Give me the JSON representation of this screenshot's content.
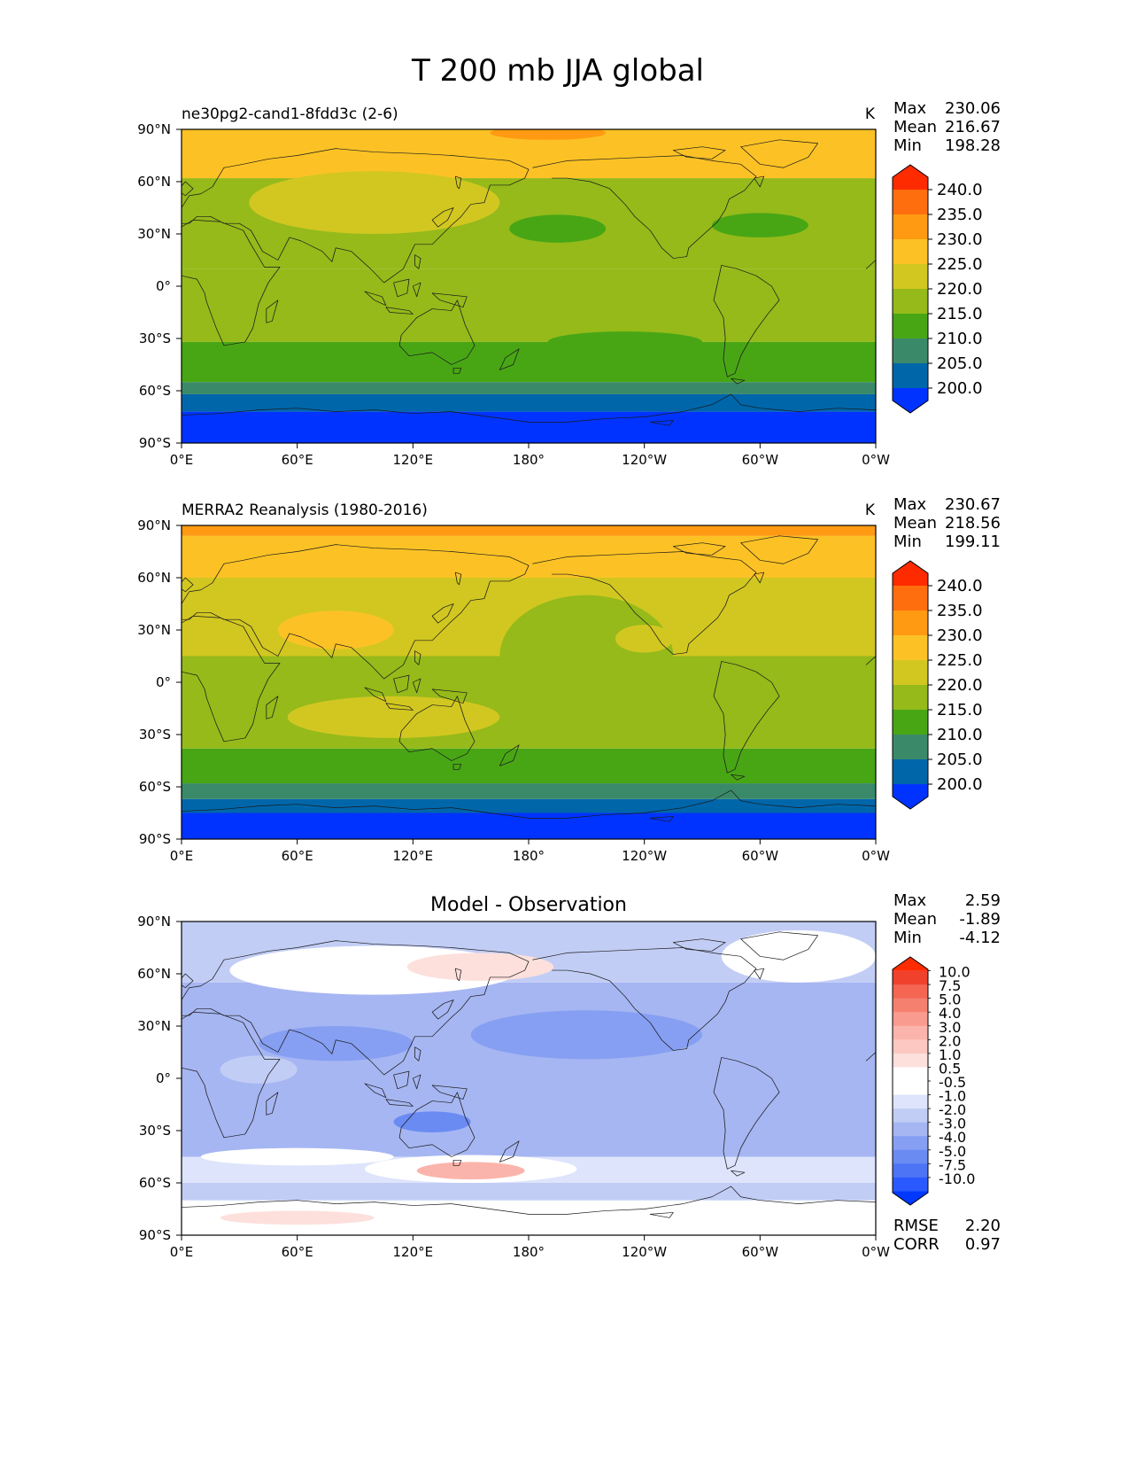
{
  "title": "T 200 mb JJA global",
  "xtick_labels": [
    "0°E",
    "60°E",
    "120°E",
    "180°",
    "120°W",
    "60°W",
    "0°W"
  ],
  "ytick_labels": [
    "90°N",
    "60°N",
    "30°N",
    "0°",
    "30°S",
    "60°S",
    "90°S"
  ],
  "colors": {
    "abs_levels": [
      "#0033ff",
      "#0066aa",
      "#3a8a6a",
      "#48a615",
      "#95ba1a",
      "#d2c721",
      "#fcc225",
      "#ff9a12",
      "#ff6e0e",
      "#ff2b00"
    ],
    "diff_levels": [
      "#0038ff",
      "#2a5aff",
      "#4d74f5",
      "#6a8bf2",
      "#869ff2",
      "#a6b6f2",
      "#c2cdf5",
      "#dde4fb",
      "#ffffff",
      "#ffffff",
      "#fde0dc",
      "#fcc8c1",
      "#fbb4ab",
      "#f99b8f",
      "#f68070",
      "#f46552",
      "#f0412c",
      "#ff2b00"
    ],
    "land_outline": "#1a1a1a"
  },
  "chart_data": [
    {
      "type": "heatmap",
      "panel": "test",
      "title": "ne30pg2-cand1-8fdd3c (2-6)",
      "units": "K",
      "stats": {
        "max_label": "Max",
        "max": "230.06",
        "mean_label": "Mean",
        "mean": "216.67",
        "min_label": "Min",
        "min": "198.28"
      },
      "colorbar_levels": [
        "240.0",
        "235.0",
        "230.0",
        "225.0",
        "220.0",
        "215.0",
        "210.0",
        "205.0",
        "200.0"
      ],
      "xlim": [
        0,
        360
      ],
      "ylim": [
        -90,
        90
      ],
      "zones": [
        {
          "lat": [
            -90,
            -72
          ],
          "level": 0
        },
        {
          "lat": [
            -72,
            -62
          ],
          "level": 1
        },
        {
          "lat": [
            -62,
            -55
          ],
          "level": 2
        },
        {
          "lat": [
            -55,
            -32
          ],
          "level": 3
        },
        {
          "lat": [
            -32,
            10
          ],
          "level": 4
        },
        {
          "lat": [
            10,
            62
          ],
          "level": 4
        },
        {
          "lat": [
            62,
            90
          ],
          "level": 6
        }
      ],
      "blobs": [
        {
          "lon": 100,
          "lat": 48,
          "rlon": 65,
          "rlat": 18,
          "level": 5
        },
        {
          "lon": 195,
          "lat": 33,
          "rlon": 25,
          "rlat": 8,
          "level": 3
        },
        {
          "lon": 300,
          "lat": 35,
          "rlon": 25,
          "rlat": 7,
          "level": 3
        },
        {
          "lon": 230,
          "lat": -32,
          "rlon": 40,
          "rlat": 6,
          "level": 3
        },
        {
          "lon": 190,
          "lat": 88,
          "rlon": 30,
          "rlat": 4,
          "level": 7
        }
      ]
    },
    {
      "type": "heatmap",
      "panel": "reference",
      "title": "MERRA2 Reanalysis (1980-2016)",
      "units": "K",
      "stats": {
        "max_label": "Max",
        "max": "230.67",
        "mean_label": "Mean",
        "mean": "218.56",
        "min_label": "Min",
        "min": "199.11"
      },
      "colorbar_levels": [
        "240.0",
        "235.0",
        "230.0",
        "225.0",
        "220.0",
        "215.0",
        "210.0",
        "205.0",
        "200.0"
      ],
      "xlim": [
        0,
        360
      ],
      "ylim": [
        -90,
        90
      ],
      "zones": [
        {
          "lat": [
            -90,
            -75
          ],
          "level": 0
        },
        {
          "lat": [
            -75,
            -67
          ],
          "level": 1
        },
        {
          "lat": [
            -67,
            -58
          ],
          "level": 2
        },
        {
          "lat": [
            -58,
            -38
          ],
          "level": 3
        },
        {
          "lat": [
            -38,
            15
          ],
          "level": 4
        },
        {
          "lat": [
            15,
            60
          ],
          "level": 5
        },
        {
          "lat": [
            60,
            84
          ],
          "level": 6
        },
        {
          "lat": [
            84,
            90
          ],
          "level": 7
        }
      ],
      "blobs": [
        {
          "lon": 80,
          "lat": 30,
          "rlon": 30,
          "rlat": 11,
          "level": 6
        },
        {
          "lon": 210,
          "lat": 15,
          "rlon": 45,
          "rlat": 35,
          "level": 4
        },
        {
          "lon": 110,
          "lat": -20,
          "rlon": 55,
          "rlat": 12,
          "level": 5
        },
        {
          "lon": 240,
          "lat": 25,
          "rlon": 15,
          "rlat": 8,
          "level": 5
        },
        {
          "lon": 125,
          "lat": 5,
          "rlon": 25,
          "rlat": 8,
          "level": 4
        }
      ]
    },
    {
      "type": "heatmap",
      "panel": "difference",
      "title": "Model - Observation",
      "stats": {
        "max_label": "Max",
        "max": "2.59",
        "mean_label": "Mean",
        "mean": "-1.89",
        "min_label": "Min",
        "min": "-4.12"
      },
      "colorbar_levels": [
        "10.0",
        "7.5",
        "5.0",
        "4.0",
        "3.0",
        "2.0",
        "1.0",
        "0.5",
        "-0.5",
        "-1.0",
        "-2.0",
        "-3.0",
        "-4.0",
        "-5.0",
        "-7.5",
        "-10.0"
      ],
      "metrics": {
        "rmse_label": "RMSE",
        "rmse": "2.20",
        "corr_label": "CORR",
        "corr": "0.97"
      },
      "xlim": [
        0,
        360
      ],
      "ylim": [
        -90,
        90
      ],
      "zones": [
        {
          "lat": [
            -90,
            -70
          ],
          "level": 8
        },
        {
          "lat": [
            -70,
            -60
          ],
          "level": 6
        },
        {
          "lat": [
            -60,
            -45
          ],
          "level": 7
        },
        {
          "lat": [
            -45,
            55
          ],
          "level": 5
        },
        {
          "lat": [
            55,
            90
          ],
          "level": 6
        }
      ],
      "blobs": [
        {
          "lon": 100,
          "lat": 62,
          "rlon": 75,
          "rlat": 14,
          "level": 8
        },
        {
          "lon": 320,
          "lat": 70,
          "rlon": 40,
          "rlat": 15,
          "level": 8
        },
        {
          "lon": 150,
          "lat": -52,
          "rlon": 55,
          "rlat": 8,
          "level": 9
        },
        {
          "lon": 60,
          "lat": -45,
          "rlon": 50,
          "rlat": 5,
          "level": 8
        },
        {
          "lon": 155,
          "lat": 64,
          "rlon": 38,
          "rlat": 8,
          "level": 10
        },
        {
          "lon": 150,
          "lat": -53,
          "rlon": 28,
          "rlat": 5,
          "level": 12
        },
        {
          "lon": 210,
          "lat": 25,
          "rlon": 60,
          "rlat": 14,
          "level": 4
        },
        {
          "lon": 80,
          "lat": 20,
          "rlon": 40,
          "rlat": 10,
          "level": 4
        },
        {
          "lon": 130,
          "lat": -25,
          "rlon": 20,
          "rlat": 6,
          "level": 3
        },
        {
          "lon": 60,
          "lat": -80,
          "rlon": 40,
          "rlat": 4,
          "level": 10
        },
        {
          "lon": 40,
          "lat": 5,
          "rlon": 20,
          "rlat": 8,
          "level": 6
        }
      ]
    }
  ]
}
